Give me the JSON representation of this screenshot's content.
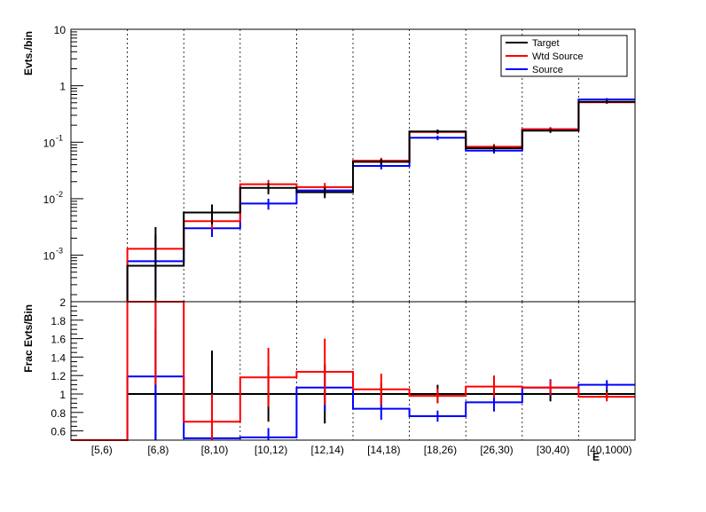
{
  "chart_data": [
    {
      "type": "line",
      "panel": "top",
      "ylabel": "Evts./bin",
      "yscale": "log",
      "ylim": [
        0.00015,
        10
      ],
      "yticks": [
        {
          "value": 10,
          "label": "10"
        },
        {
          "value": 1,
          "label": "1"
        },
        {
          "value": 0.1,
          "label": "10",
          "exp": "-1"
        },
        {
          "value": 0.01,
          "label": "10",
          "exp": "-2"
        },
        {
          "value": 0.001,
          "label": "10",
          "exp": "-3"
        }
      ],
      "legend_position": "top-right",
      "series": [
        {
          "name": "Target",
          "color": "#000000",
          "values": [
            null,
            0.00065,
            0.0057,
            0.0155,
            0.013,
            0.045,
            0.155,
            0.078,
            0.16,
            0.52
          ],
          "err_low": [
            null,
            0.00065,
            0.0022,
            0.0035,
            0.0028,
            0.0055,
            0.013,
            0.009,
            0.014,
            0.035
          ],
          "err_high": [
            null,
            0.0025,
            0.0022,
            0.0035,
            0.0028,
            0.0055,
            0.013,
            0.009,
            0.014,
            0.035
          ]
        },
        {
          "name": "Wtd Source",
          "color": "#ff0000",
          "values": [
            null,
            0.0013,
            0.004,
            0.018,
            0.016,
            0.047,
            0.152,
            0.083,
            0.17,
            0.51
          ],
          "err_low": [
            null,
            0.0004,
            0.0011,
            0.0035,
            0.003,
            0.006,
            0.013,
            0.01,
            0.015,
            0.03
          ],
          "err_high": [
            null,
            0.0009,
            0.0011,
            0.0035,
            0.003,
            0.006,
            0.013,
            0.01,
            0.015,
            0.03
          ]
        },
        {
          "name": "Source",
          "color": "#0000ff",
          "values": [
            null,
            0.00078,
            0.003,
            0.0082,
            0.014,
            0.038,
            0.12,
            0.071,
            0.17,
            0.57
          ],
          "err_low": [
            null,
            0.0006,
            0.0009,
            0.0018,
            0.0028,
            0.005,
            0.011,
            0.008,
            0.014,
            0.035
          ],
          "err_high": [
            null,
            0.0015,
            0.0009,
            0.0018,
            0.0028,
            0.005,
            0.011,
            0.008,
            0.014,
            0.035
          ]
        }
      ]
    },
    {
      "type": "line",
      "panel": "bottom",
      "ylabel": "Frac Evts/Bin",
      "xlabel": "E",
      "ylim": [
        0.5,
        2.0
      ],
      "yticks": [
        0.6,
        0.8,
        1,
        1.2,
        1.4,
        1.6,
        1.8,
        2
      ],
      "categories": [
        "[5,6)",
        "[6,8)",
        "[8,10)",
        "[10,12)",
        "[12,14)",
        "[14,18)",
        "[18,26)",
        "[26,30)",
        "[30,40)",
        "[40,1000)"
      ],
      "series": [
        {
          "name": "Target",
          "color": "#000000",
          "values": [
            null,
            1,
            1,
            1,
            1,
            1,
            1,
            1,
            1,
            1
          ],
          "err_low": [
            null,
            0.7,
            0.47,
            0.3,
            0.32,
            0.12,
            0.1,
            0.12,
            0.08,
            0.05
          ],
          "err_high": [
            null,
            0.7,
            0.47,
            0.3,
            0.32,
            0.12,
            0.1,
            0.12,
            0.08,
            0.05
          ]
        },
        {
          "name": "Wtd Source",
          "color": "#ff0000",
          "values": [
            0.5,
            2.0,
            0.7,
            1.18,
            1.24,
            1.05,
            0.98,
            1.08,
            1.07,
            0.97
          ],
          "err_low": [
            null,
            0.9,
            0.3,
            0.32,
            0.36,
            0.17,
            0.08,
            0.12,
            0.08,
            0.05
          ],
          "err_high": [
            null,
            0.9,
            0.3,
            0.32,
            0.36,
            0.17,
            0.08,
            0.12,
            0.08,
            0.05
          ]
        },
        {
          "name": "Source",
          "color": "#0000ff",
          "values": [
            0.5,
            1.19,
            0.52,
            0.53,
            1.07,
            0.84,
            0.76,
            0.91,
            1.07,
            1.1
          ],
          "err_low": [
            null,
            0.9,
            0.16,
            0.1,
            0.25,
            0.12,
            0.06,
            0.1,
            0.09,
            0.05
          ],
          "err_high": [
            null,
            0.9,
            0.16,
            0.1,
            0.25,
            0.12,
            0.06,
            0.1,
            0.09,
            0.05
          ]
        }
      ]
    }
  ]
}
